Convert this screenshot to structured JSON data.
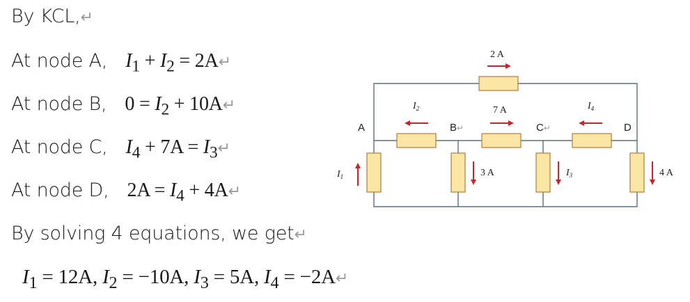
{
  "text": {
    "l0": "By KCL,",
    "l1_label": "At node A,",
    "l2_label": "At node B,",
    "l3_label": "At node C,",
    "l4_label": "At node D,",
    "l5": "By solving 4 equations, we get",
    "return_mark": "↵"
  },
  "equations": {
    "nodeA": {
      "lhs1": "I",
      "s1": "1",
      "op1": " + ",
      "lhs2": "I",
      "s2": "2",
      "rest": " = 2A"
    },
    "nodeB": {
      "pre": "0 = ",
      "v": "I",
      "s": "2",
      "rest": " + 10A"
    },
    "nodeC": {
      "v1": "I",
      "s1": "4",
      "mid": " + 7A = ",
      "v2": "I",
      "s2": "3"
    },
    "nodeD": {
      "pre": "2A = ",
      "v": "I",
      "s": "4",
      "rest": " + 4A"
    },
    "result": {
      "i1": "I",
      "i1s": "1",
      "i1v": " = 12A, ",
      "i2": "I",
      "i2s": "2",
      "i2v": " = −10A, ",
      "i3": "I",
      "i3s": "3",
      "i3v": " = 5A, ",
      "i4": "I",
      "i4s": "4",
      "i4v": " = −2A"
    }
  },
  "circuit": {
    "top_current": "2 A",
    "mid_current": "7 A",
    "b_down_current": "3 A",
    "d_down_current": "4 A",
    "i1": "I",
    "i1s": "1",
    "i2": "I",
    "i2s": "2",
    "i3": "I",
    "i3s": "3",
    "i4": "I",
    "i4s": "4",
    "node_a": "A",
    "node_b": "B",
    "node_c": "C",
    "node_d": "D",
    "node_mark": "↵",
    "colors": {
      "wire": "#5a6f7c",
      "resistor_fill": "#fce6a6",
      "resistor_stroke": "#b27a3c",
      "arrow": "#c0282d"
    }
  }
}
